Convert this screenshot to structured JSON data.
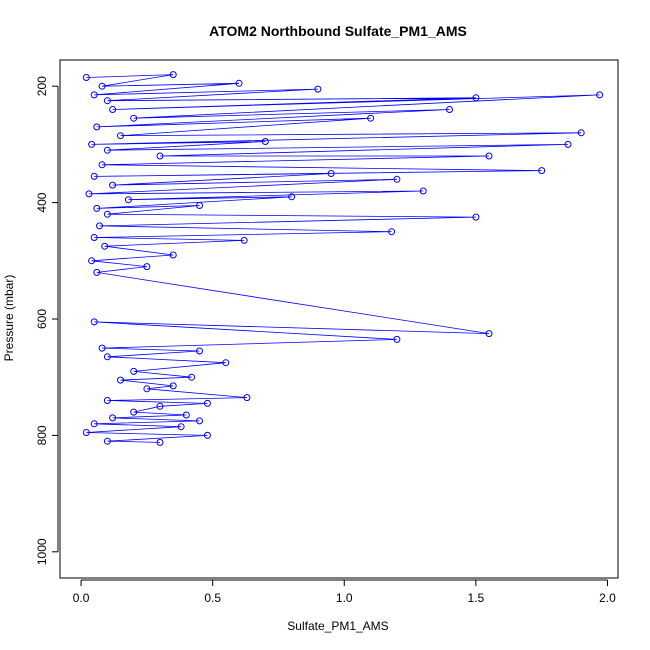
{
  "chart_data": {
    "type": "line",
    "title": "ATOM2 Northbound Sulfate_PM1_AMS",
    "xlabel": "Sulfate_PM1_AMS",
    "ylabel": "Pressure (mbar)",
    "xlim": [
      -0.08,
      2.04
    ],
    "ylim": [
      1045,
      155
    ],
    "y_reversed": true,
    "x_ticks": [
      0.0,
      0.5,
      1.0,
      1.5,
      2.0
    ],
    "x_tick_labels": [
      "0.0",
      "0.5",
      "1.0",
      "1.5",
      "2.0"
    ],
    "y_ticks": [
      200,
      400,
      600,
      800,
      1000
    ],
    "y_tick_labels": [
      "200",
      "400",
      "600",
      "800",
      "1000"
    ],
    "grid": false,
    "legend": "none",
    "marker": "open-circle",
    "color": "#0000ff",
    "series": [
      {
        "x": [
          0.02,
          0.35,
          0.08,
          0.6,
          0.05,
          0.9,
          0.1,
          1.5,
          0.12,
          1.97,
          0.2,
          1.4,
          0.06,
          1.1,
          0.15,
          1.9,
          0.04,
          0.7,
          0.1,
          1.85,
          0.3,
          1.55,
          0.08,
          1.75,
          0.05,
          0.95,
          0.12,
          1.2,
          0.03,
          1.3,
          0.18,
          0.8,
          0.06,
          0.45,
          0.1,
          1.5,
          0.07,
          1.18,
          0.05,
          0.62,
          0.09,
          0.35,
          0.04,
          0.25,
          0.06,
          1.55,
          0.05,
          1.2,
          0.08,
          0.45,
          0.1,
          0.55,
          0.2,
          0.42,
          0.15,
          0.35,
          0.25,
          0.63,
          0.1,
          0.48,
          0.3,
          0.2,
          0.4,
          0.12,
          0.45,
          0.05,
          0.38,
          0.02,
          0.48,
          0.1,
          0.3
        ],
        "y": [
          185,
          180,
          200,
          195,
          215,
          205,
          225,
          220,
          240,
          215,
          255,
          240,
          270,
          255,
          285,
          280,
          300,
          295,
          310,
          300,
          320,
          320,
          335,
          345,
          355,
          350,
          370,
          360,
          385,
          380,
          395,
          390,
          410,
          405,
          420,
          425,
          440,
          450,
          460,
          465,
          475,
          490,
          500,
          510,
          520,
          625,
          605,
          635,
          650,
          655,
          665,
          675,
          690,
          700,
          705,
          715,
          720,
          735,
          740,
          745,
          750,
          760,
          765,
          770,
          775,
          780,
          785,
          795,
          800,
          810,
          812
        ]
      }
    ]
  }
}
